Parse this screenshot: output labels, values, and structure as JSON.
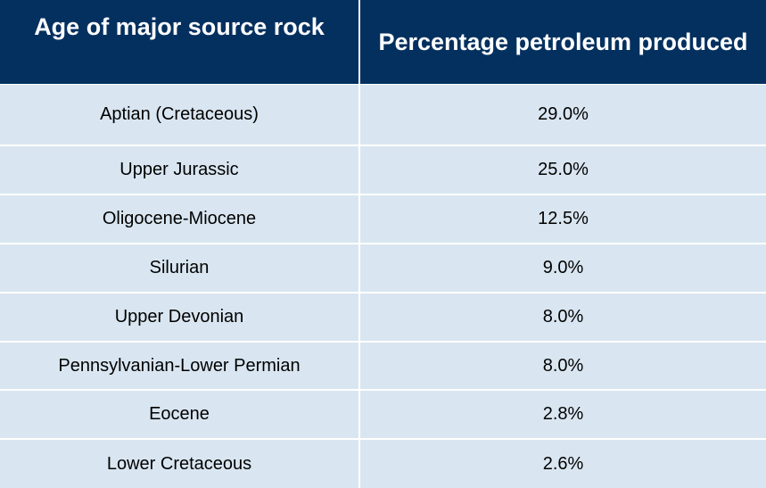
{
  "chart_data": {
    "type": "table",
    "columns": [
      "Age of major source rock",
      "Percentage petroleum produced"
    ],
    "rows": [
      {
        "age": "Aptian (Cretaceous)",
        "percentage": "29.0%"
      },
      {
        "age": "Upper Jurassic",
        "percentage": "25.0%"
      },
      {
        "age": "Oligocene-Miocene",
        "percentage": "12.5%"
      },
      {
        "age": "Silurian",
        "percentage": "9.0%"
      },
      {
        "age": "Upper Devonian",
        "percentage": "8.0%"
      },
      {
        "age": "Pennsylvanian-Lower Permian",
        "percentage": "8.0%"
      },
      {
        "age": "Eocene",
        "percentage": "2.8%"
      },
      {
        "age": "Lower Cretaceous",
        "percentage": "2.6%"
      }
    ]
  },
  "colors": {
    "header_bg": "#04305f",
    "header_text": "#ffffff",
    "row_bg": "#d9e6f1",
    "row_text": "#000000",
    "divider": "#ffffff"
  }
}
